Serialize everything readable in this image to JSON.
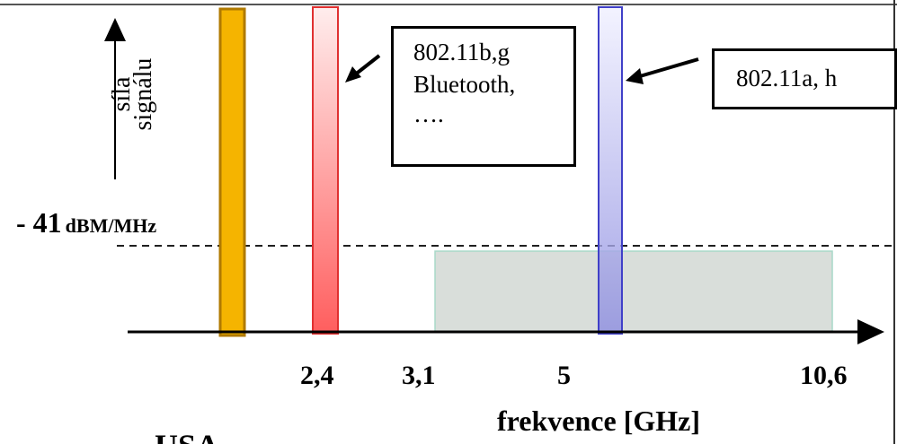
{
  "y_axis_label": "síla\nsignálu",
  "threshold": {
    "value": "- 41",
    "unit": "dBM/MHz"
  },
  "x_axis": {
    "label": "frekvence [GHz]",
    "ticks": [
      "2,4",
      "3,1",
      "5",
      "10,6"
    ]
  },
  "callouts": {
    "left": {
      "lines": [
        "802.11b,g",
        "Bluetooth,",
        "…."
      ]
    },
    "right": {
      "text": "802.11a, h"
    }
  },
  "region_label": "USA",
  "colors": {
    "orange_band": "#F5B400",
    "red_band": "#F04040",
    "blue_band": "#6060D0",
    "uwb_region": "#D9DEDA"
  }
}
